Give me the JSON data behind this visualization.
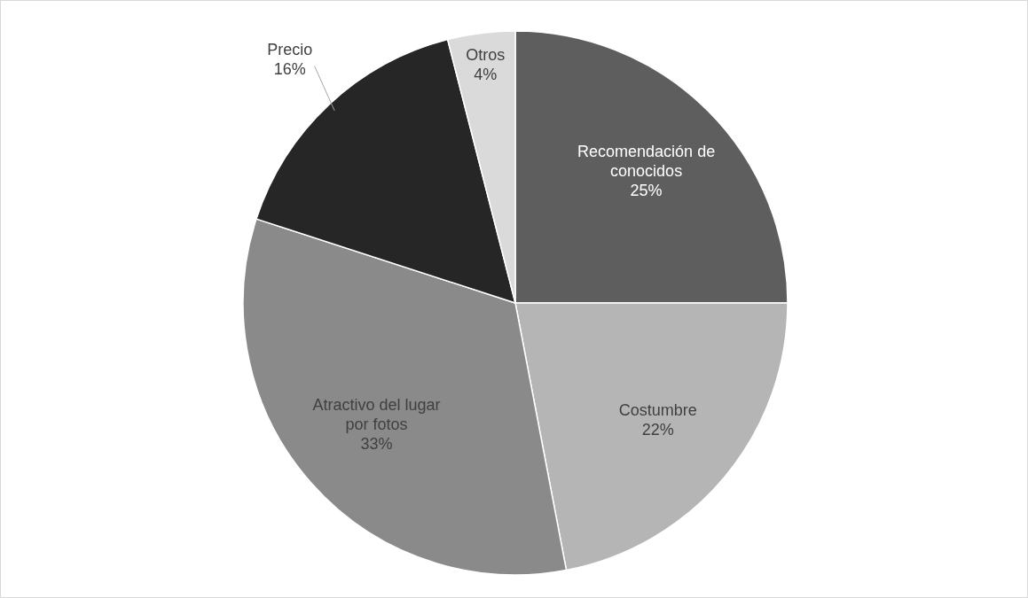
{
  "chart_data": {
    "type": "pie",
    "categories": [
      "Recomendación de conocidos",
      "Costumbre",
      "Atractivo del lugar por fotos",
      "Precio",
      "Otros"
    ],
    "values": [
      25,
      22,
      33,
      16,
      4
    ],
    "colors": [
      "#5e5e5e",
      "#b5b5b5",
      "#8a8a8a",
      "#262626",
      "#dadada"
    ],
    "value_labels": [
      "25%",
      "22%",
      "33%",
      "16%",
      "4%"
    ]
  }
}
